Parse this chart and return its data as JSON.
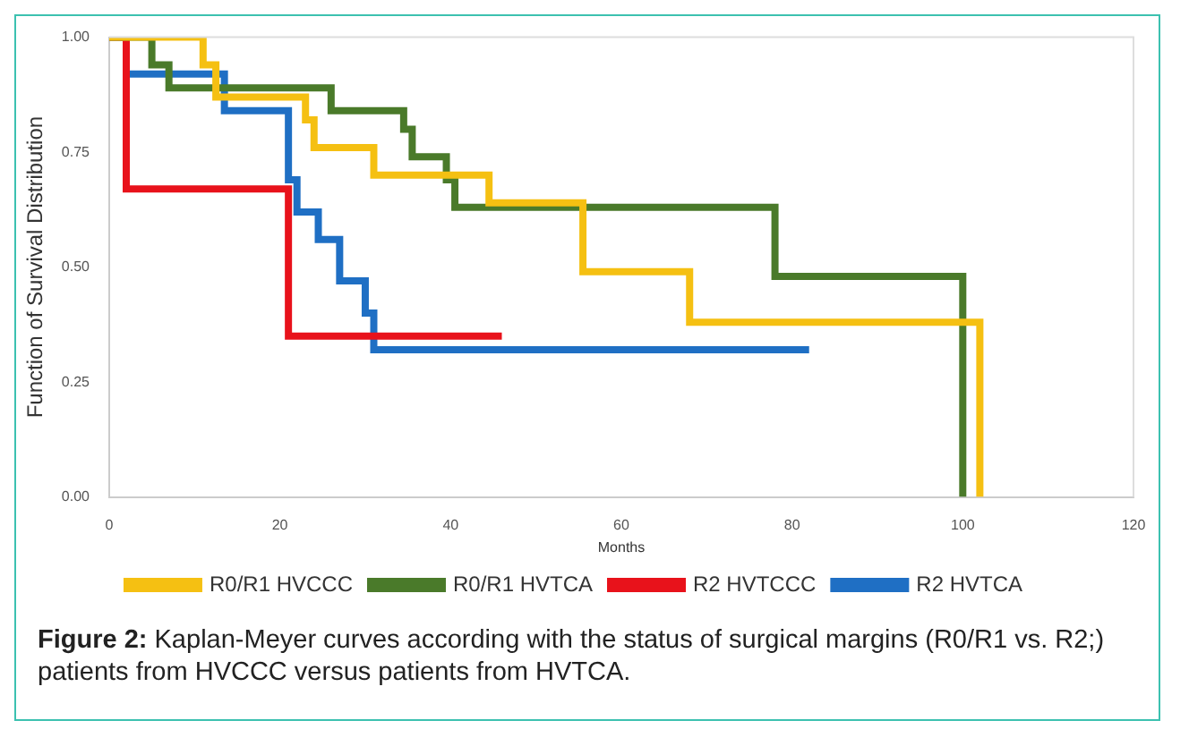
{
  "chart_data": {
    "type": "step",
    "xlabel": "Months",
    "ylabel": "Function of Survival Distribution",
    "xlim": [
      0,
      120
    ],
    "xticks": [
      0,
      20,
      40,
      60,
      80,
      100,
      120
    ],
    "ylim": [
      0,
      1
    ],
    "yticks": [
      {
        "value": 0,
        "label": "0.00"
      },
      {
        "value": 0.25,
        "label": "0.25"
      },
      {
        "value": 0.5,
        "label": "0.50"
      },
      {
        "value": 0.75,
        "label": "0.75"
      },
      {
        "value": 1,
        "label": "1.00"
      }
    ],
    "grid": false,
    "legend": "bottom",
    "marker": "none",
    "line_style": "solid",
    "series": [
      {
        "name": "R0/R1 HVCCC",
        "color": "#f5c012",
        "x": [
          0,
          11,
          12.5,
          23,
          24,
          31,
          44.5,
          55.5,
          68,
          102,
          102
        ],
        "values": [
          1,
          0.94,
          0.87,
          0.82,
          0.76,
          0.7,
          0.64,
          0.49,
          0.38,
          0.38,
          0
        ]
      },
      {
        "name": "R0/R1 HVTCA",
        "color": "#4a7a2a",
        "x": [
          0,
          5,
          7,
          26,
          34.5,
          35.5,
          39.5,
          40.5,
          78,
          100,
          100
        ],
        "values": [
          1,
          0.94,
          0.89,
          0.84,
          0.8,
          0.74,
          0.69,
          0.63,
          0.48,
          0.48,
          0
        ]
      },
      {
        "name": "R2 HVTCCC",
        "color": "#e8121b",
        "x": [
          0,
          2,
          21,
          46
        ],
        "values": [
          1,
          0.67,
          0.35,
          0.35
        ]
      },
      {
        "name": "R2 HVTCA",
        "color": "#1f6fc4",
        "x": [
          0,
          2,
          13.5,
          21,
          22,
          24.5,
          27,
          30,
          31,
          82
        ],
        "values": [
          1,
          0.92,
          0.84,
          0.69,
          0.62,
          0.56,
          0.47,
          0.4,
          0.32,
          0.32
        ]
      }
    ],
    "annotations": [
      "Figure 2: Kaplan-Meyer curves according with the status of surgical margins (R0/R1 vs. R2;) patients from HVCCC versus patients from HVTCA."
    ]
  }
}
